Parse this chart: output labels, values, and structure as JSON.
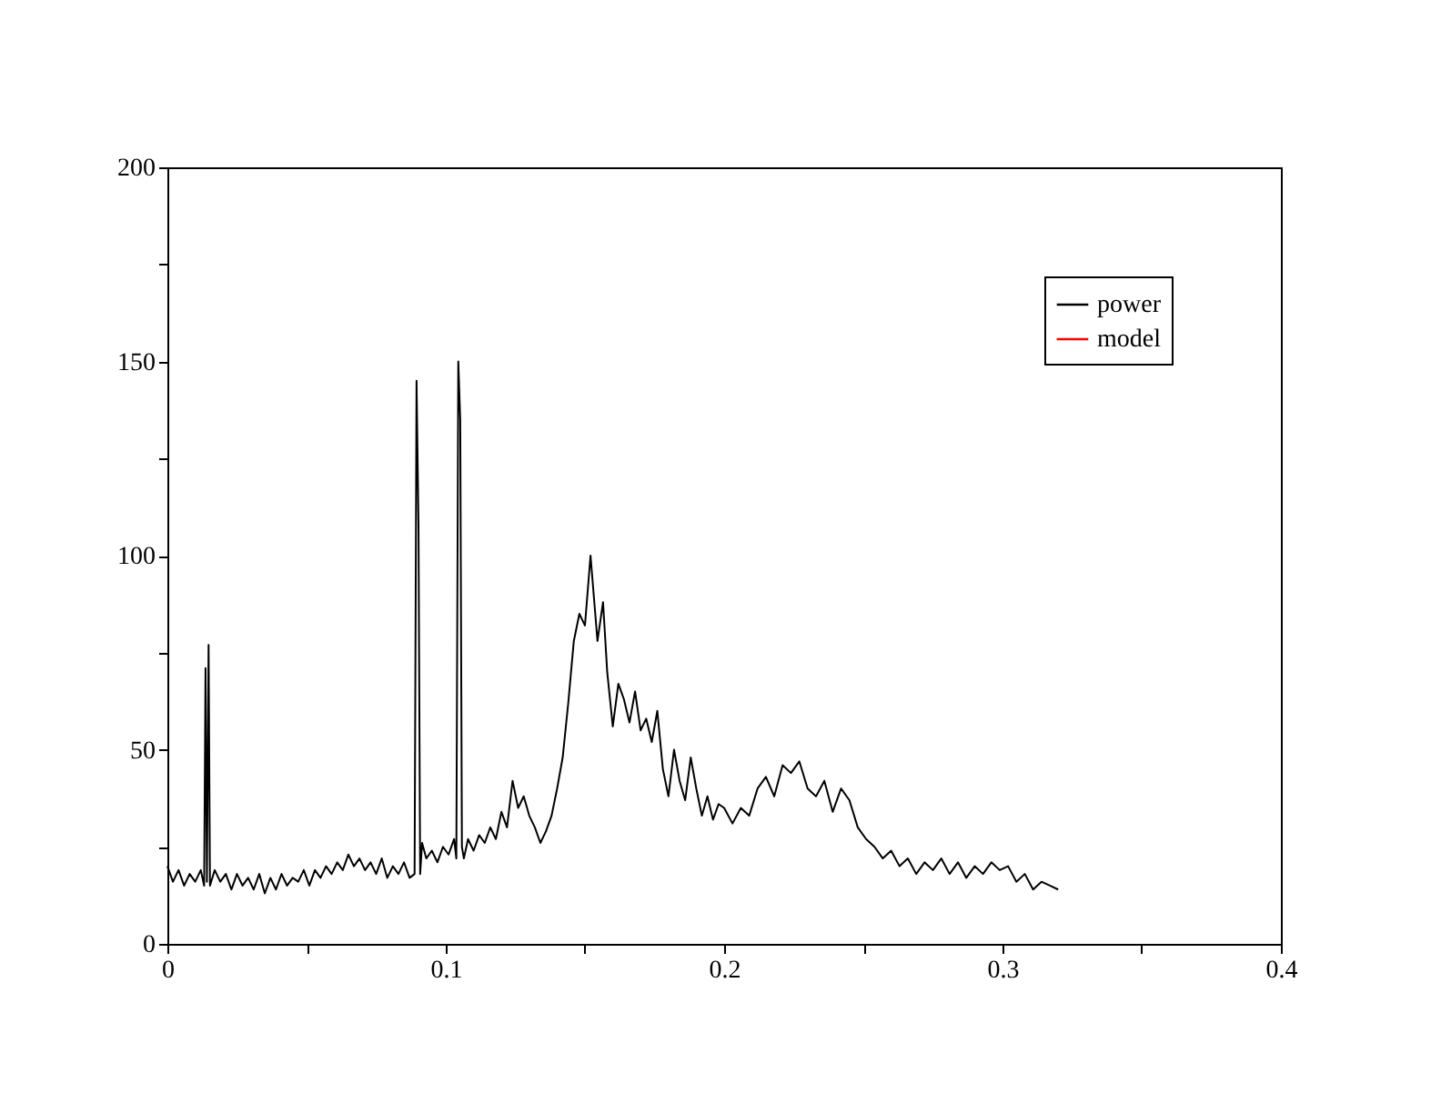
{
  "chart_data": {
    "type": "line",
    "xlim": [
      0,
      0.4
    ],
    "ylim": [
      0,
      200
    ],
    "xticks": [
      0,
      {
        "value": 0.05,
        "label": null
      },
      0.1,
      {
        "value": 0.15,
        "label": null
      },
      0.2,
      {
        "value": 0.25,
        "label": null
      },
      0.3,
      {
        "value": 0.35,
        "label": null
      },
      0.4
    ],
    "yticks": [
      0,
      {
        "value": 25,
        "label": null
      },
      50,
      {
        "value": 75,
        "label": null
      },
      100,
      {
        "value": 125,
        "label": null
      },
      150,
      {
        "value": 175,
        "label": null
      },
      200
    ],
    "grid": false,
    "legend": "top right",
    "line_style": "solid",
    "marker": "none",
    "series": [
      {
        "name": "power",
        "color": "#000000",
        "x": [
          0,
          0.002,
          0.004,
          0.006,
          0.008,
          0.01,
          0.012,
          0.0132,
          0.0137,
          0.0142,
          0.0148,
          0.0153,
          0.017,
          0.019,
          0.021,
          0.023,
          0.025,
          0.027,
          0.029,
          0.031,
          0.033,
          0.035,
          0.037,
          0.039,
          0.041,
          0.043,
          0.045,
          0.047,
          0.049,
          0.051,
          0.053,
          0.055,
          0.057,
          0.059,
          0.061,
          0.063,
          0.065,
          0.067,
          0.069,
          0.071,
          0.073,
          0.075,
          0.077,
          0.079,
          0.081,
          0.083,
          0.085,
          0.087,
          0.0888,
          0.0895,
          0.0902,
          0.0908,
          0.0915,
          0.093,
          0.095,
          0.097,
          0.099,
          0.101,
          0.103,
          0.1038,
          0.1045,
          0.1052,
          0.1058,
          0.1065,
          0.108,
          0.11,
          0.112,
          0.114,
          0.116,
          0.118,
          0.12,
          0.122,
          0.124,
          0.126,
          0.128,
          0.13,
          0.132,
          0.134,
          0.136,
          0.138,
          0.14,
          0.142,
          0.144,
          0.146,
          0.148,
          0.15,
          0.152,
          0.1545,
          0.1565,
          0.158,
          0.16,
          0.162,
          0.164,
          0.166,
          0.168,
          0.17,
          0.172,
          0.174,
          0.176,
          0.178,
          0.18,
          0.182,
          0.184,
          0.186,
          0.188,
          0.19,
          0.192,
          0.194,
          0.196,
          0.198,
          0.2,
          0.203,
          0.206,
          0.209,
          0.212,
          0.215,
          0.218,
          0.221,
          0.224,
          0.227,
          0.23,
          0.233,
          0.236,
          0.239,
          0.242,
          0.245,
          0.248,
          0.251,
          0.254,
          0.257,
          0.26,
          0.263,
          0.266,
          0.269,
          0.272,
          0.275,
          0.278,
          0.281,
          0.284,
          0.287,
          0.29,
          0.293,
          0.296,
          0.299,
          0.302,
          0.305,
          0.308,
          0.311,
          0.314,
          0.317,
          0.32
        ],
        "values": [
          20,
          16,
          19,
          15,
          18,
          16,
          19,
          15,
          71,
          16,
          77,
          15,
          19,
          16,
          18,
          14,
          18,
          15,
          17,
          14,
          18,
          13,
          17,
          14,
          18,
          15,
          17,
          16,
          19,
          15,
          19,
          17,
          20,
          18,
          21,
          19,
          23,
          20,
          22,
          19,
          21,
          18,
          22,
          17,
          20,
          18,
          21,
          17,
          18,
          145,
          108,
          18,
          26,
          22,
          24,
          21,
          25,
          23,
          27,
          22,
          150,
          135,
          25,
          22,
          27,
          24,
          28,
          26,
          30,
          27,
          34,
          30,
          42,
          35,
          38,
          33,
          30,
          26,
          29,
          33,
          40,
          48,
          62,
          78,
          85,
          82,
          100,
          78,
          88,
          70,
          56,
          67,
          63,
          57,
          65,
          55,
          58,
          52,
          60,
          45,
          38,
          50,
          42,
          37,
          48,
          40,
          33,
          38,
          32,
          36,
          35,
          31,
          35,
          33,
          40,
          43,
          38,
          46,
          44,
          47,
          40,
          38,
          42,
          34,
          40,
          37,
          30,
          27,
          25,
          22,
          24,
          20,
          22,
          18,
          21,
          19,
          22,
          18,
          21,
          17,
          20,
          18,
          21,
          19,
          20,
          16,
          18,
          14,
          16,
          15,
          14
        ]
      },
      {
        "name": "model",
        "color": "#ff0000"
      }
    ]
  }
}
